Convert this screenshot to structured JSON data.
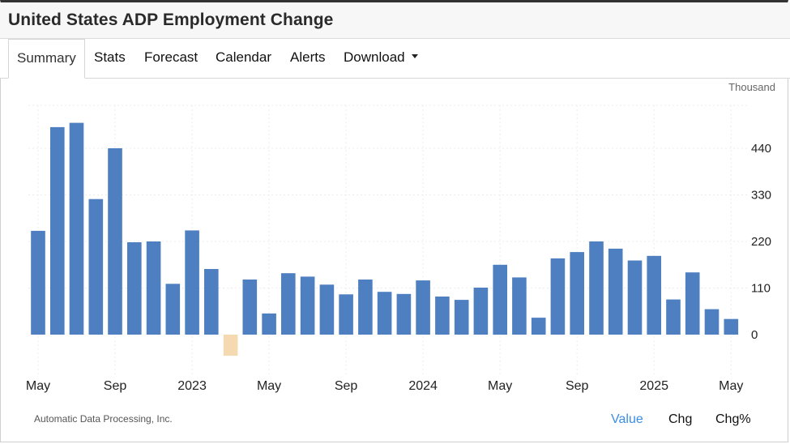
{
  "title": "United States ADP Employment Change",
  "tabs": [
    {
      "label": "Summary"
    },
    {
      "label": "Stats"
    },
    {
      "label": "Forecast"
    },
    {
      "label": "Calendar"
    },
    {
      "label": "Alerts"
    },
    {
      "label": "Download"
    }
  ],
  "icons": {
    "download_dropdown": "caret-down-icon"
  },
  "unit_label": "Thousand",
  "source": "Automatic Data Processing, Inc.",
  "view_modes": [
    {
      "label": "Value",
      "active": true
    },
    {
      "label": "Chg",
      "active": false
    },
    {
      "label": "Chg%",
      "active": false
    }
  ],
  "colors": {
    "positive_bar": "#4e7fc1",
    "negative_bar": "#f5d9b0",
    "active_mode": "#3a8ee6"
  },
  "chart_data": {
    "type": "bar",
    "categories": [
      "2022-05",
      "2022-06",
      "2022-07",
      "2022-08",
      "2022-09",
      "2022-10",
      "2022-11",
      "2022-12",
      "2023-01",
      "2023-02",
      "2023-03",
      "2023-04",
      "2023-05",
      "2023-06",
      "2023-07",
      "2023-08",
      "2023-09",
      "2023-10",
      "2023-11",
      "2023-12",
      "2024-01",
      "2024-02",
      "2024-03",
      "2024-04",
      "2024-05",
      "2024-06",
      "2024-07",
      "2024-08",
      "2024-09",
      "2024-10",
      "2024-11",
      "2024-12",
      "2025-01",
      "2025-02",
      "2025-03",
      "2025-04",
      "2025-05"
    ],
    "values": [
      245,
      490,
      500,
      320,
      440,
      218,
      220,
      120,
      246,
      155,
      -50,
      130,
      50,
      145,
      137,
      118,
      95,
      130,
      101,
      96,
      128,
      90,
      82,
      111,
      165,
      135,
      40,
      180,
      195,
      220,
      203,
      175,
      186,
      83,
      147,
      60,
      37
    ],
    "x_tick_labels": [
      "May",
      "Sep",
      "2023",
      "May",
      "Sep",
      "2024",
      "May",
      "Sep",
      "2025",
      "May"
    ],
    "x_tick_positions": [
      "2022-05",
      "2022-09",
      "2023-01",
      "2023-05",
      "2023-09",
      "2024-01",
      "2024-05",
      "2024-09",
      "2025-01",
      "2025-05"
    ],
    "y_ticks": [
      0,
      110,
      220,
      330,
      440
    ],
    "ylim": [
      -100,
      540
    ],
    "grid": true
  }
}
